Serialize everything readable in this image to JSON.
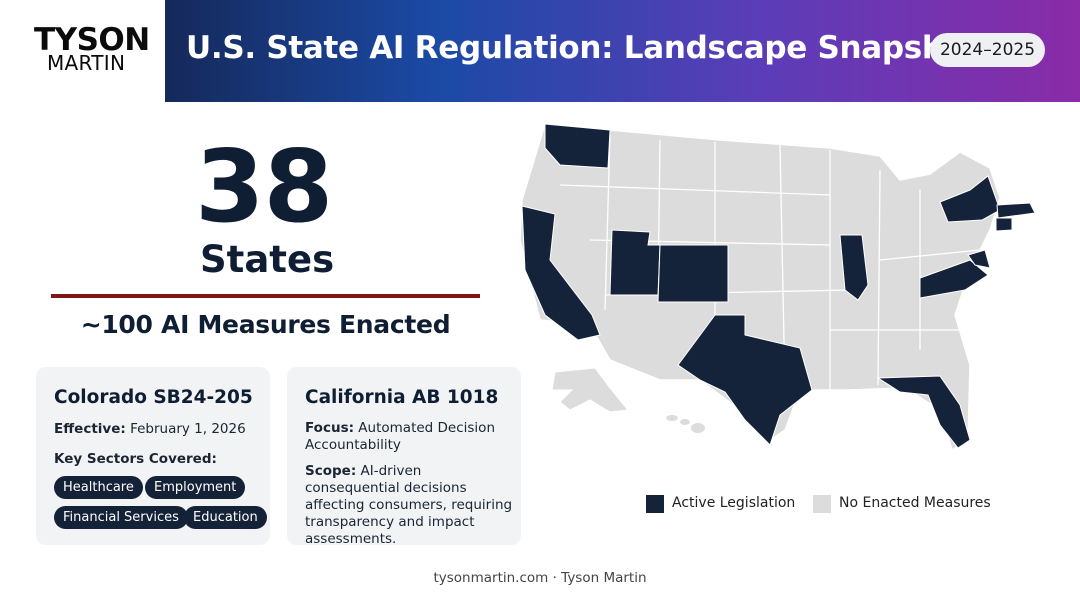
{
  "brand": {
    "line1": "TYSON",
    "line2": "MARTIN"
  },
  "header": {
    "title": "U.S. State AI Regulation: Landscape Snapshot",
    "period": "2024–2025"
  },
  "stat": {
    "number": "38",
    "unit": "States",
    "subtitle": "~100 AI Measures Enacted"
  },
  "cards": [
    {
      "title": "Colorado SB24-205",
      "effective_label": "Effective:",
      "effective_value": "February 1, 2026",
      "sectors_label": "Key Sectors Covered:",
      "sectors": [
        "Healthcare",
        "Employment",
        "Financial Services",
        "Education"
      ]
    },
    {
      "title": "California AB 1018",
      "focus_label": "Focus:",
      "focus_value": "Automated Decision Accountability",
      "scope_label": "Scope:",
      "scope_value": "AI-driven consequential decisions affecting consumers, requiring transparency and impact assessments."
    }
  ],
  "map": {
    "highlighted_states": [
      "Washington",
      "California",
      "Utah",
      "Colorado",
      "Texas",
      "Illinois",
      "Virginia",
      "Maryland",
      "New York",
      "Massachusetts",
      "Connecticut",
      "Florida"
    ],
    "colors": {
      "active": "#14233a",
      "none": "#dcdcdc",
      "border": "#ffffff"
    }
  },
  "legend": {
    "active": "Active Legislation",
    "none": "No Enacted Measures"
  },
  "footer": "tysonmartin.com · Tyson Martin"
}
